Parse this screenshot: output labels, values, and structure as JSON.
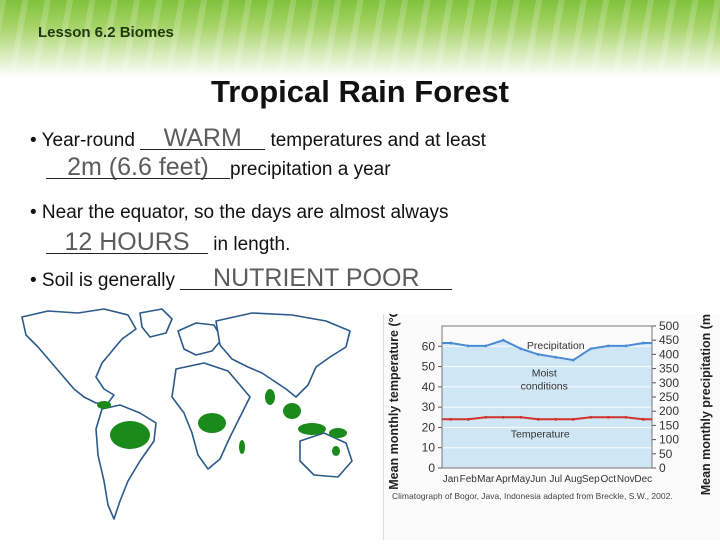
{
  "header": {
    "lesson": "Lesson 6.2 Biomes"
  },
  "title": "Tropical Rain Forest",
  "bullets": [
    {
      "prefix": "• Year-round ",
      "answer": "WARM",
      "suffix": " temperatures and at least"
    },
    {
      "answer": "2m (6.6 feet)",
      "suffix": "precipitation a year"
    },
    {
      "prefix": "• Near the equator, so the days are almost always"
    },
    {
      "answer": "12 HOURS",
      "suffix": " in length."
    },
    {
      "prefix": "• Soil is generally ",
      "answer": "NUTRIENT POOR"
    }
  ],
  "colors": {
    "forest": "#1a8a1a",
    "land": "#ffffff",
    "ocean": "#2a5a8a",
    "precip_fill": "#cfe6f5",
    "precip_line": "#4a8bd4",
    "temp_line": "#d2322d"
  },
  "chart_data": {
    "type": "line",
    "categories": [
      "Jan",
      "Feb",
      "Mar",
      "Apr",
      "May",
      "Jun",
      "Jul",
      "Aug",
      "Sep",
      "Oct",
      "Nov",
      "Dec"
    ],
    "ylabel": "Mean monthly temperature (°C)",
    "y2label": "Mean monthly precipitation (mm)",
    "ylim": [
      0,
      70
    ],
    "y2lim": [
      0,
      500
    ],
    "yticks": [
      0,
      10,
      20,
      30,
      40,
      50,
      60
    ],
    "y2ticks": [
      0,
      50,
      100,
      150,
      200,
      250,
      300,
      350,
      400,
      450,
      500
    ],
    "annotations": {
      "precipitation": "Precipitation",
      "temperature": "Temperature",
      "region": "Moist conditions"
    },
    "series": [
      {
        "name": "Precipitation",
        "axis": "right",
        "values": [
          440,
          430,
          430,
          450,
          420,
          400,
          390,
          380,
          420,
          430,
          430,
          440
        ]
      },
      {
        "name": "Temperature",
        "axis": "left",
        "values": [
          24,
          24,
          25,
          25,
          25,
          24,
          24,
          24,
          25,
          25,
          25,
          24
        ]
      }
    ],
    "caption": "Climatograph of Bogor, Java, Indonesia adapted from Breckle, S.W., 2002."
  }
}
